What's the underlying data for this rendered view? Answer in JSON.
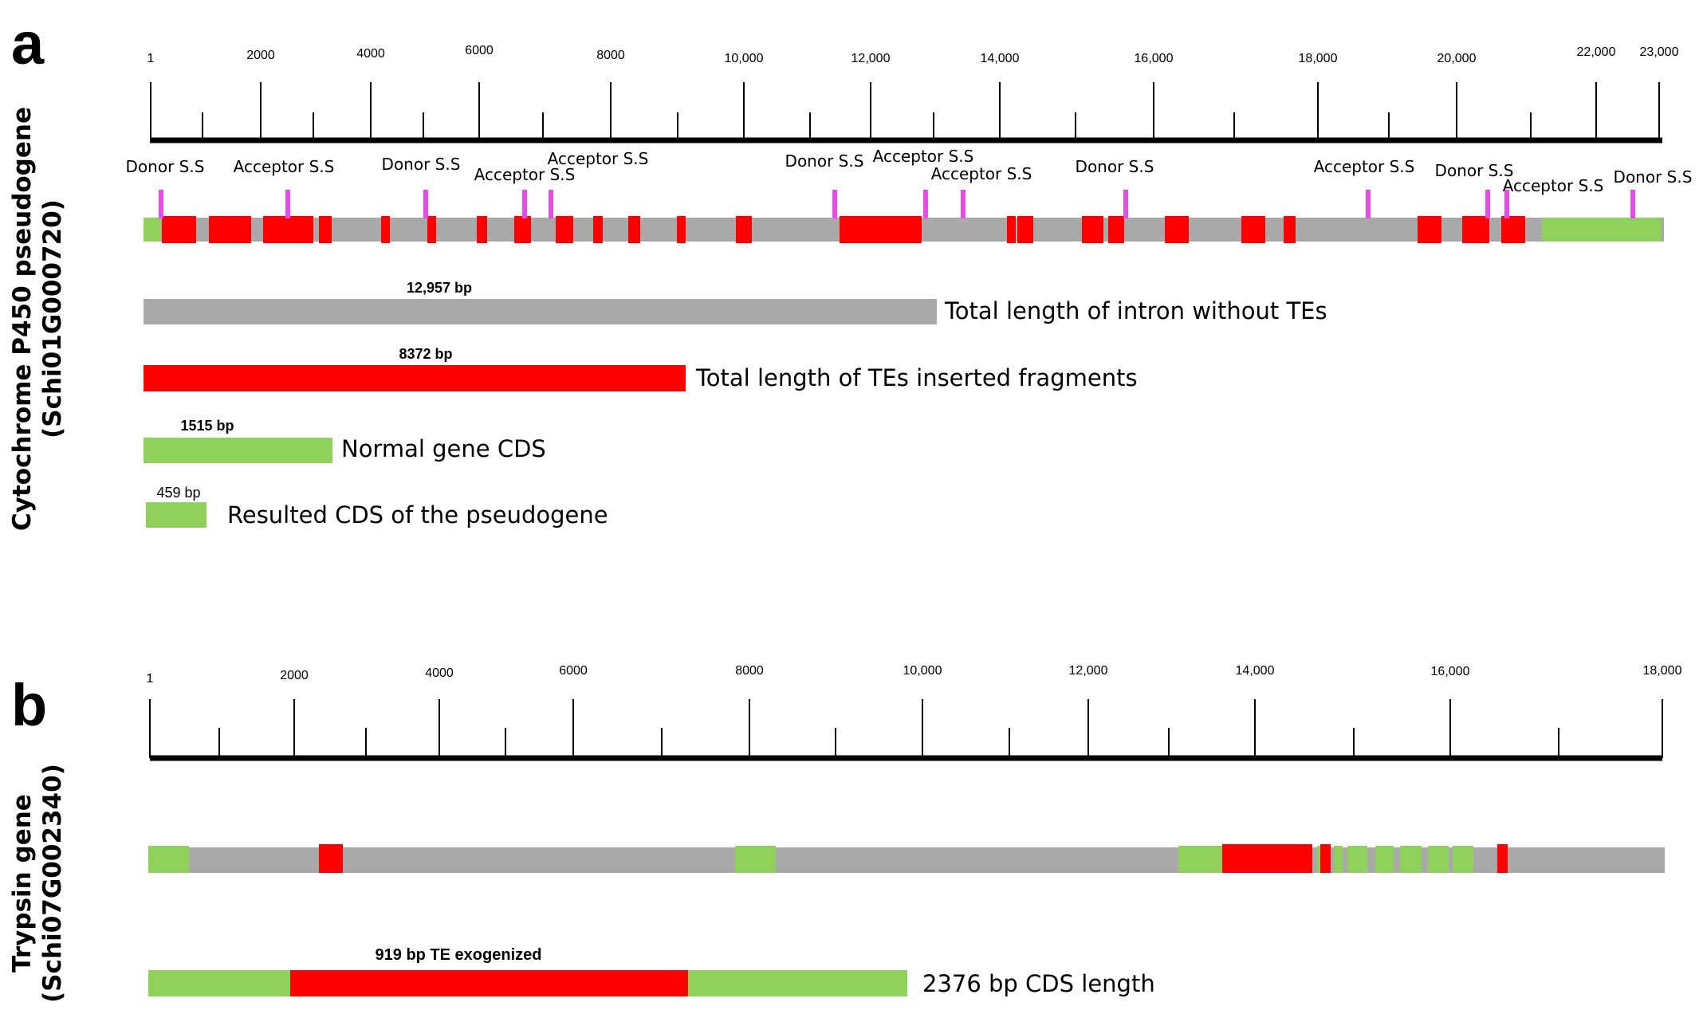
{
  "panel_a": {
    "letter": "a",
    "title_line1": "Cytochrome P450 pseudogene",
    "title_line2": "(Schi01G000720)",
    "ruler_labels": [
      "1",
      "2000",
      "4000",
      "6000",
      "8000",
      "10,000",
      "12,000",
      "14,000",
      "16,000",
      "18,000",
      "20,000",
      "22,000",
      "23,000"
    ],
    "splice_sites": [
      "Donor S.S",
      "Acceptor S.S",
      "Donor S.S",
      "Acceptor S.S",
      "Acceptor S.S",
      "Donor S.S",
      "Acceptor S.S",
      "Acceptor S.S",
      "Donor S.S",
      "Acceptor S.S",
      "Donor S.S",
      "Acceptor S.S",
      "Donor S.S"
    ],
    "summary": [
      {
        "value": "12,957 bp",
        "label": "Total length of intron without TEs",
        "color": "#a9a9a9"
      },
      {
        "value": "8372 bp",
        "label": "Total length of TEs inserted fragments",
        "color": "#ff0000"
      },
      {
        "value": "1515 bp",
        "label": "Normal gene CDS",
        "color": "#8fd15a"
      },
      {
        "value": "459  bp",
        "label": "Resulted CDS of the pseudogene",
        "color": "#8fd15a"
      }
    ]
  },
  "panel_b": {
    "letter": "b",
    "title_line1": "Trypsin gene",
    "title_line2": "(Schi07G002340)",
    "ruler_labels": [
      "1",
      "2000",
      "4000",
      "6000",
      "8000",
      "10,000",
      "12,000",
      "14,000",
      "16,000",
      "18,000"
    ],
    "bar_title": "919 bp TE exogenized",
    "bar_label": "2376 bp CDS length"
  },
  "colors": {
    "intron": "#a9a9a9",
    "te": "#ff0000",
    "exon": "#8fd15a",
    "splice_mark": "#e84ce8"
  }
}
